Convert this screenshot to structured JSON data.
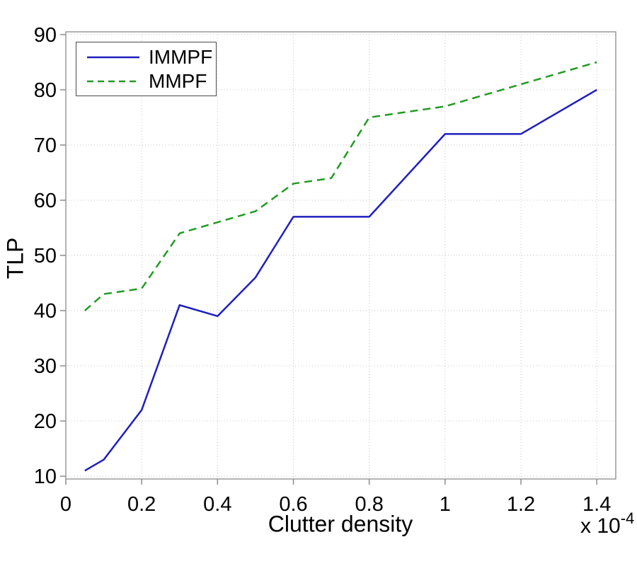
{
  "chart_data": {
    "type": "line",
    "title": "",
    "xlabel": "Clutter density",
    "ylabel": "TLP",
    "x_multiplier_label": "x 10",
    "x_multiplier_exponent": "-4",
    "x": [
      0.05,
      0.1,
      0.2,
      0.3,
      0.4,
      0.5,
      0.6,
      0.7,
      0.8,
      1.0,
      1.2,
      1.4
    ],
    "series": [
      {
        "name": "IMMPF",
        "style": "solid",
        "color": "#1f1fbe",
        "values": [
          11,
          13,
          22,
          41,
          39,
          46,
          57,
          57,
          57,
          72,
          72,
          80
        ]
      },
      {
        "name": "MMPF",
        "style": "dashed",
        "color": "#229b22",
        "values": [
          40,
          43,
          44,
          54,
          56,
          58,
          63,
          64,
          75,
          77,
          81,
          85
        ]
      }
    ],
    "xlim": [
      0,
      1.45
    ],
    "ylim": [
      9.5,
      90.5
    ],
    "xticks": [
      0,
      0.2,
      0.4,
      0.6,
      0.8,
      1,
      1.2,
      1.4
    ],
    "xtick_labels": [
      "0",
      "0.2",
      "0.4",
      "0.6",
      "0.8",
      "1",
      "1.2",
      "1.4"
    ],
    "yticks": [
      10,
      20,
      30,
      40,
      50,
      60,
      70,
      80,
      90
    ],
    "ytick_labels": [
      "10",
      "20",
      "30",
      "40",
      "50",
      "60",
      "70",
      "80",
      "90"
    ],
    "grid": true,
    "legend_position": "top-left"
  },
  "legend": {
    "items": [
      {
        "label": "IMMPF"
      },
      {
        "label": "MMPF"
      }
    ]
  },
  "colors": {
    "background": "#ffffff",
    "grid": "#c6c6c6",
    "axis_box": "#9a9a9a",
    "tick": "#8c8c8c",
    "text": "#000000",
    "immpf_line": "#1f1fbe",
    "mmpf_line": "#229b22"
  }
}
